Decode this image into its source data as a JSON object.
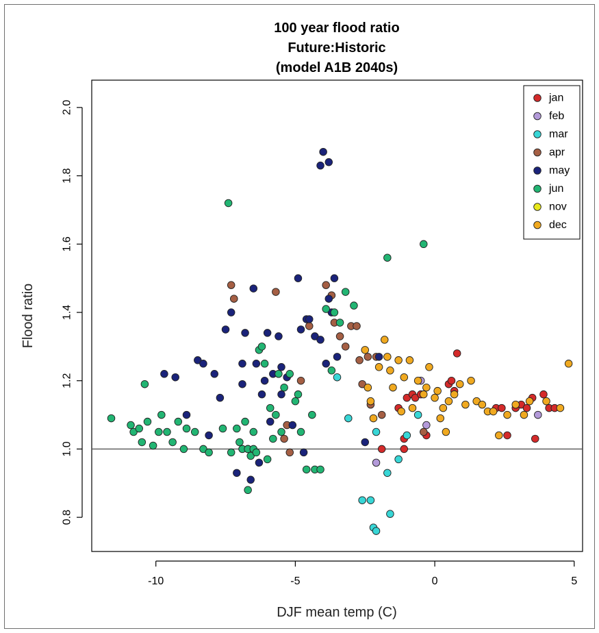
{
  "chart_data": {
    "type": "scatter",
    "title": [
      "100 year flood ratio",
      "Future:Historic",
      "(model A1B 2040s)"
    ],
    "xlabel": "DJF mean temp (C)",
    "ylabel": "Flood ratio",
    "xlim": [
      -12.3,
      5.3
    ],
    "ylim": [
      0.7,
      2.08
    ],
    "xticks": [
      -10,
      -5,
      0,
      5
    ],
    "yticks": [
      0.8,
      1.0,
      1.2,
      1.4,
      1.6,
      1.8,
      2.0
    ],
    "reference_line": 1.0,
    "grid": false,
    "legend_position": "top-right",
    "series": [
      {
        "name": "jan",
        "color": "#d42a2a",
        "points": [
          [
            -1.9,
            1.0
          ],
          [
            -1.1,
            1.0
          ],
          [
            -1.1,
            1.03
          ],
          [
            -1.3,
            1.12
          ],
          [
            -1.0,
            1.15
          ],
          [
            -0.8,
            1.16
          ],
          [
            -0.7,
            1.15
          ],
          [
            -0.5,
            1.16
          ],
          [
            -0.3,
            1.04
          ],
          [
            0.5,
            1.19
          ],
          [
            0.6,
            1.2
          ],
          [
            0.7,
            1.17
          ],
          [
            0.8,
            1.28
          ],
          [
            2.2,
            1.12
          ],
          [
            2.4,
            1.12
          ],
          [
            2.6,
            1.04
          ],
          [
            2.9,
            1.12
          ],
          [
            3.1,
            1.13
          ],
          [
            3.3,
            1.12
          ],
          [
            3.5,
            1.15
          ],
          [
            3.6,
            1.03
          ],
          [
            3.9,
            1.16
          ],
          [
            4.1,
            1.12
          ],
          [
            4.3,
            1.12
          ]
        ]
      },
      {
        "name": "feb",
        "color": "#b39ad9",
        "points": [
          [
            -2.1,
            0.96
          ],
          [
            -0.5,
            1.2
          ],
          [
            -0.3,
            1.07
          ],
          [
            3.7,
            1.1
          ]
        ]
      },
      {
        "name": "mar",
        "color": "#38d6d6",
        "points": [
          [
            -3.5,
            1.21
          ],
          [
            -3.1,
            1.09
          ],
          [
            -2.6,
            0.85
          ],
          [
            -2.3,
            0.85
          ],
          [
            -2.1,
            1.05
          ],
          [
            -2.2,
            0.77
          ],
          [
            -2.1,
            0.76
          ],
          [
            -1.7,
            0.93
          ],
          [
            -1.6,
            0.81
          ],
          [
            -1.3,
            0.97
          ],
          [
            -1.0,
            1.04
          ],
          [
            -0.6,
            1.1
          ]
        ]
      },
      {
        "name": "apr",
        "color": "#a55f44",
        "points": [
          [
            -7.3,
            1.48
          ],
          [
            -7.2,
            1.44
          ],
          [
            -5.7,
            1.46
          ],
          [
            -5.4,
            1.03
          ],
          [
            -5.3,
            1.07
          ],
          [
            -5.2,
            0.99
          ],
          [
            -4.8,
            1.2
          ],
          [
            -4.5,
            1.36
          ],
          [
            -3.9,
            1.48
          ],
          [
            -3.7,
            1.45
          ],
          [
            -3.6,
            1.37
          ],
          [
            -3.4,
            1.33
          ],
          [
            -3.2,
            1.3
          ],
          [
            -3.0,
            1.36
          ],
          [
            -2.8,
            1.36
          ],
          [
            -2.7,
            1.26
          ],
          [
            -2.6,
            1.19
          ],
          [
            -2.4,
            1.27
          ],
          [
            -2.3,
            1.13
          ],
          [
            -2.1,
            1.27
          ],
          [
            -1.9,
            1.1
          ],
          [
            -0.4,
            1.05
          ]
        ]
      },
      {
        "name": "may",
        "color": "#1a237a",
        "points": [
          [
            -9.7,
            1.22
          ],
          [
            -9.3,
            1.21
          ],
          [
            -8.9,
            1.1
          ],
          [
            -8.5,
            1.26
          ],
          [
            -8.3,
            1.25
          ],
          [
            -8.1,
            1.04
          ],
          [
            -7.9,
            1.22
          ],
          [
            -7.7,
            1.15
          ],
          [
            -7.5,
            1.35
          ],
          [
            -7.3,
            1.4
          ],
          [
            -7.1,
            0.93
          ],
          [
            -6.9,
            1.25
          ],
          [
            -6.9,
            1.19
          ],
          [
            -6.8,
            1.34
          ],
          [
            -6.7,
            1.0
          ],
          [
            -6.6,
            0.91
          ],
          [
            -6.5,
            1.47
          ],
          [
            -6.4,
            1.25
          ],
          [
            -6.3,
            0.96
          ],
          [
            -6.2,
            1.16
          ],
          [
            -6.1,
            1.2
          ],
          [
            -6.0,
            1.34
          ],
          [
            -5.9,
            1.08
          ],
          [
            -5.8,
            1.22
          ],
          [
            -5.6,
            1.33
          ],
          [
            -5.5,
            1.16
          ],
          [
            -5.5,
            1.24
          ],
          [
            -5.3,
            1.21
          ],
          [
            -5.1,
            1.07
          ],
          [
            -4.9,
            1.5
          ],
          [
            -4.8,
            1.35
          ],
          [
            -4.7,
            0.99
          ],
          [
            -4.6,
            1.38
          ],
          [
            -4.5,
            1.38
          ],
          [
            -4.3,
            1.33
          ],
          [
            -4.1,
            1.32
          ],
          [
            -3.9,
            1.25
          ],
          [
            -3.8,
            1.44
          ],
          [
            -3.7,
            1.4
          ],
          [
            -3.6,
            1.5
          ],
          [
            -3.5,
            1.27
          ],
          [
            -4.0,
            1.87
          ],
          [
            -3.8,
            1.84
          ],
          [
            -4.1,
            1.83
          ],
          [
            -2.5,
            1.02
          ],
          [
            -2.0,
            1.27
          ]
        ]
      },
      {
        "name": "jun",
        "color": "#22b573",
        "points": [
          [
            -11.6,
            1.09
          ],
          [
            -10.9,
            1.07
          ],
          [
            -10.8,
            1.05
          ],
          [
            -10.6,
            1.06
          ],
          [
            -10.5,
            1.02
          ],
          [
            -10.4,
            1.19
          ],
          [
            -10.3,
            1.08
          ],
          [
            -10.1,
            1.01
          ],
          [
            -9.9,
            1.05
          ],
          [
            -9.8,
            1.1
          ],
          [
            -9.6,
            1.05
          ],
          [
            -9.4,
            1.02
          ],
          [
            -9.2,
            1.08
          ],
          [
            -9.0,
            1.0
          ],
          [
            -8.9,
            1.06
          ],
          [
            -8.6,
            1.05
          ],
          [
            -8.3,
            1.0
          ],
          [
            -8.1,
            0.99
          ],
          [
            -7.6,
            1.06
          ],
          [
            -7.4,
            1.72
          ],
          [
            -7.3,
            0.99
          ],
          [
            -7.1,
            1.06
          ],
          [
            -7.0,
            1.02
          ],
          [
            -6.9,
            1.0
          ],
          [
            -6.8,
            1.08
          ],
          [
            -6.7,
            1.0
          ],
          [
            -6.7,
            0.88
          ],
          [
            -6.6,
            0.98
          ],
          [
            -6.5,
            1.0
          ],
          [
            -6.5,
            1.05
          ],
          [
            -6.4,
            0.99
          ],
          [
            -6.3,
            1.29
          ],
          [
            -6.2,
            1.3
          ],
          [
            -6.1,
            1.25
          ],
          [
            -6.0,
            0.97
          ],
          [
            -5.9,
            1.12
          ],
          [
            -5.8,
            1.03
          ],
          [
            -5.7,
            1.1
          ],
          [
            -5.6,
            1.22
          ],
          [
            -5.5,
            1.05
          ],
          [
            -5.4,
            1.18
          ],
          [
            -5.2,
            1.22
          ],
          [
            -5.0,
            1.14
          ],
          [
            -4.9,
            1.16
          ],
          [
            -4.8,
            1.05
          ],
          [
            -4.6,
            0.94
          ],
          [
            -4.4,
            1.1
          ],
          [
            -4.3,
            0.94
          ],
          [
            -4.1,
            0.94
          ],
          [
            -3.9,
            1.41
          ],
          [
            -3.7,
            1.23
          ],
          [
            -3.6,
            1.4
          ],
          [
            -3.4,
            1.37
          ],
          [
            -3.2,
            1.46
          ],
          [
            -2.9,
            1.42
          ],
          [
            -1.7,
            1.56
          ],
          [
            -0.4,
            1.6
          ]
        ]
      },
      {
        "name": "nov",
        "color": "#e8e81c",
        "points": []
      },
      {
        "name": "dec",
        "color": "#f0a920",
        "points": [
          [
            -2.5,
            1.29
          ],
          [
            -2.4,
            1.18
          ],
          [
            -2.3,
            1.14
          ],
          [
            -2.2,
            1.09
          ],
          [
            -2.0,
            1.24
          ],
          [
            -1.8,
            1.32
          ],
          [
            -1.7,
            1.27
          ],
          [
            -1.6,
            1.23
          ],
          [
            -1.5,
            1.18
          ],
          [
            -1.3,
            1.26
          ],
          [
            -1.2,
            1.11
          ],
          [
            -1.1,
            1.21
          ],
          [
            -0.9,
            1.26
          ],
          [
            -0.8,
            1.12
          ],
          [
            -0.6,
            1.2
          ],
          [
            -0.4,
            1.16
          ],
          [
            -0.3,
            1.18
          ],
          [
            -0.2,
            1.24
          ],
          [
            0.0,
            1.15
          ],
          [
            0.1,
            1.17
          ],
          [
            0.2,
            1.09
          ],
          [
            0.3,
            1.12
          ],
          [
            0.4,
            1.05
          ],
          [
            0.5,
            1.14
          ],
          [
            0.7,
            1.16
          ],
          [
            0.9,
            1.19
          ],
          [
            1.1,
            1.13
          ],
          [
            1.3,
            1.2
          ],
          [
            1.5,
            1.14
          ],
          [
            1.7,
            1.13
          ],
          [
            1.9,
            1.11
          ],
          [
            2.1,
            1.11
          ],
          [
            2.3,
            1.04
          ],
          [
            2.6,
            1.1
          ],
          [
            2.9,
            1.13
          ],
          [
            3.2,
            1.1
          ],
          [
            3.4,
            1.14
          ],
          [
            4.0,
            1.14
          ],
          [
            4.5,
            1.12
          ],
          [
            4.8,
            1.25
          ]
        ]
      }
    ]
  }
}
